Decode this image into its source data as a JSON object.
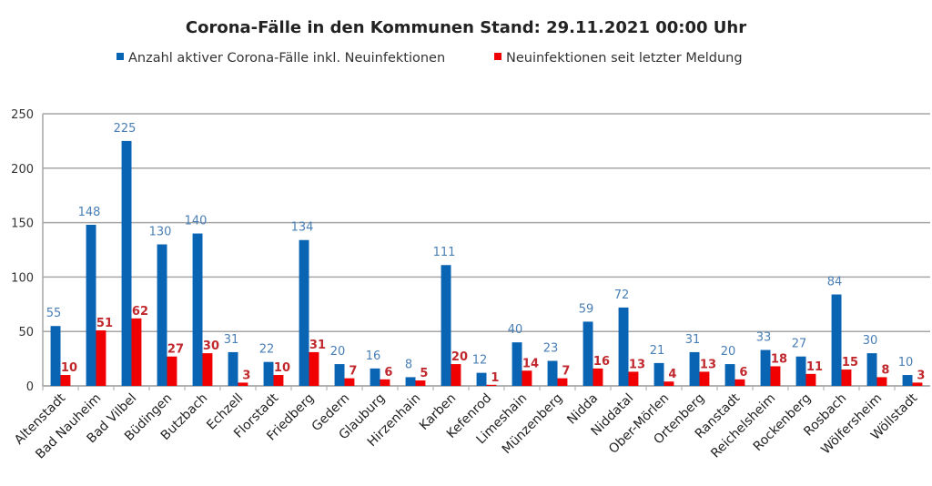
{
  "chart_data": {
    "type": "bar",
    "title": "Corona-Fälle in den Kommunen Stand: 29.11.2021 00:00 Uhr",
    "xlabel": "",
    "ylabel": "",
    "ylim": [
      0,
      250
    ],
    "yticks": [
      0,
      50,
      100,
      150,
      200,
      250
    ],
    "grid": true,
    "legend_position": "top",
    "categories": [
      "Altenstadt",
      "Bad Nauheim",
      "Bad Vilbel",
      "Büdingen",
      "Butzbach",
      "Echzell",
      "Florstadt",
      "Friedberg",
      "Gedern",
      "Glauburg",
      "Hirzenhain",
      "Karben",
      "Kefenrod",
      "Limeshain",
      "Münzenberg",
      "Nidda",
      "Niddatal",
      "Ober-Mörlen",
      "Ortenberg",
      "Ranstadt",
      "Reichelsheim",
      "Rockenberg",
      "Rosbach",
      "Wölfersheim",
      "Wöllstadt"
    ],
    "series": [
      {
        "name": "Anzahl aktiver Corona-Fälle inkl. Neuinfektionen",
        "color": "#0a64b4",
        "label_color": "#4a7fb5",
        "values": [
          55,
          148,
          225,
          130,
          140,
          31,
          22,
          134,
          20,
          16,
          8,
          111,
          12,
          40,
          23,
          59,
          72,
          21,
          31,
          20,
          33,
          27,
          84,
          30,
          10
        ]
      },
      {
        "name": "Neuinfektionen seit letzter Meldung",
        "color": "#f00000",
        "label_color": "#c0282d",
        "values": [
          10,
          51,
          62,
          27,
          30,
          3,
          10,
          31,
          7,
          6,
          5,
          20,
          1,
          14,
          7,
          16,
          13,
          4,
          13,
          6,
          18,
          11,
          15,
          8,
          3
        ]
      }
    ]
  }
}
